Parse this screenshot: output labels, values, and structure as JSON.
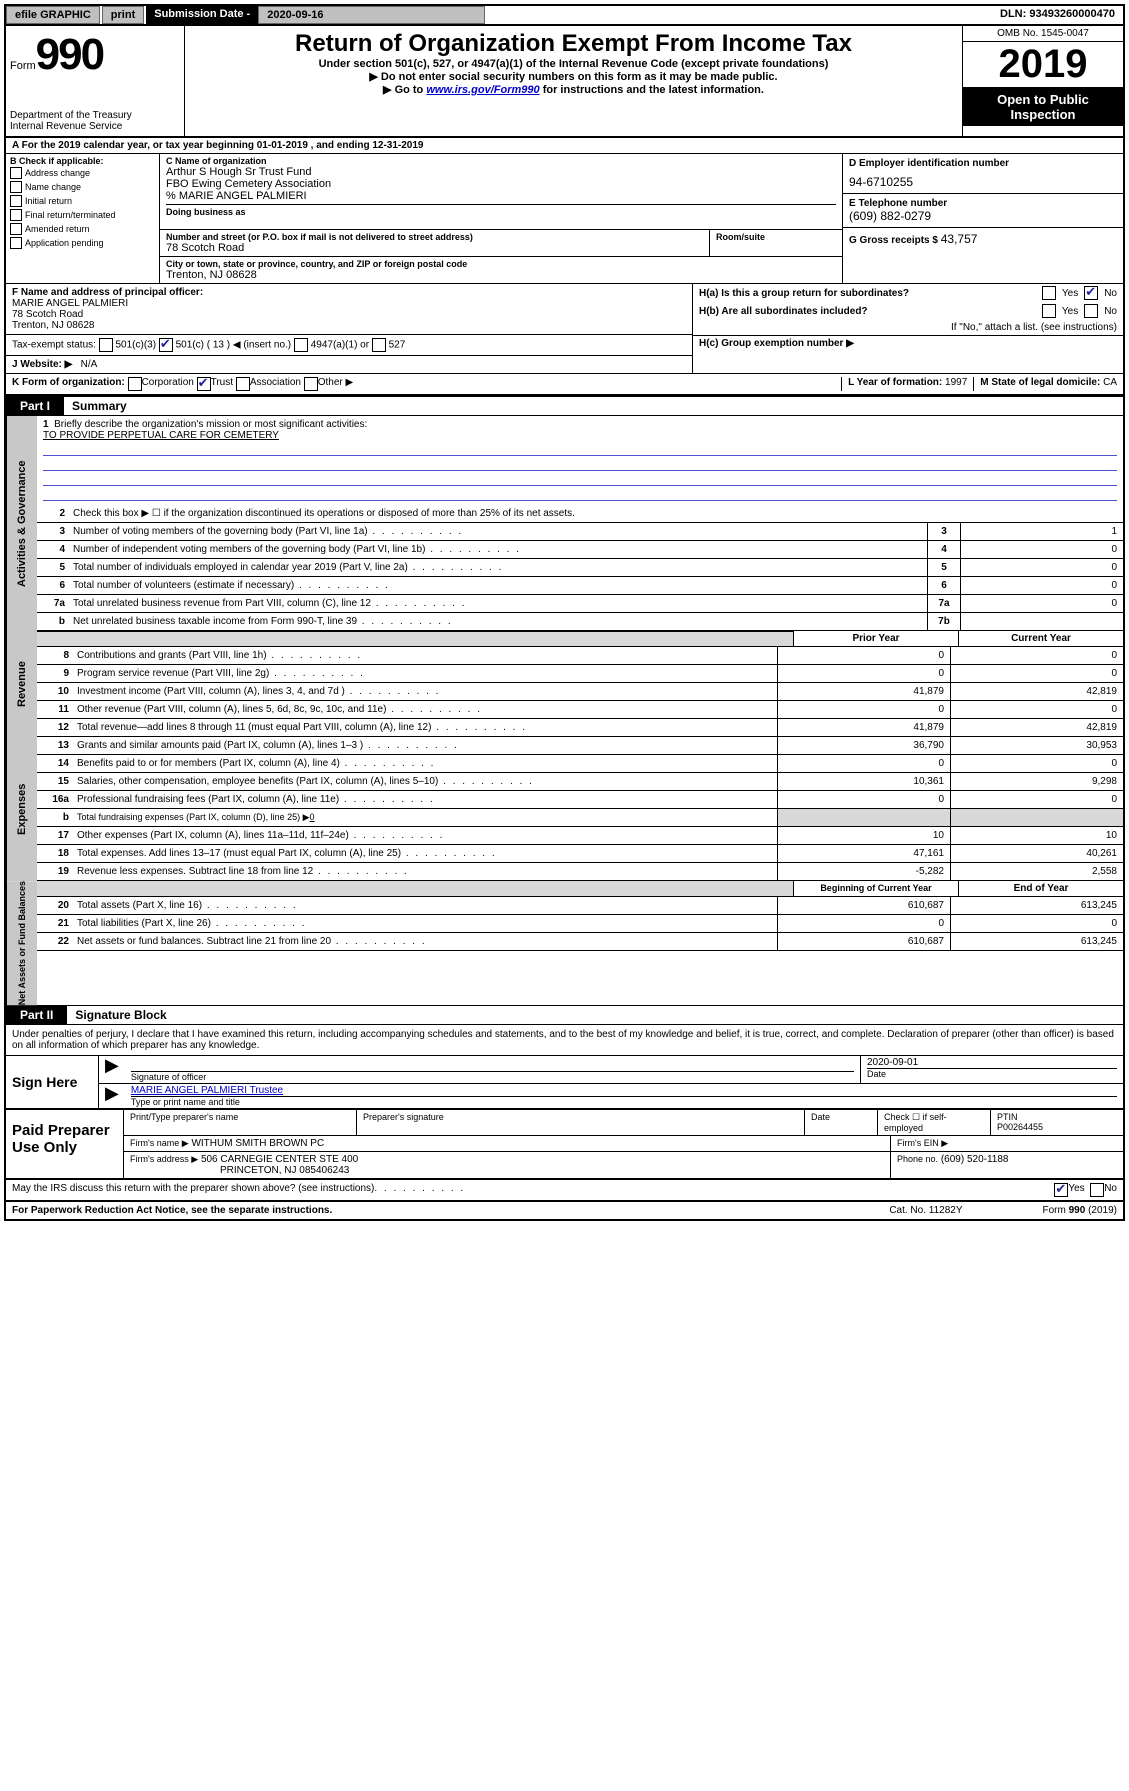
{
  "topbar": {
    "efile": "efile GRAPHIC",
    "print": "print",
    "sub_label": "Submission Date -",
    "sub_date": "2020-09-16",
    "dln": "DLN: 93493260000470"
  },
  "header": {
    "form_word": "Form",
    "form_num": "990",
    "dept1": "Department of the Treasury",
    "dept2": "Internal Revenue Service",
    "title": "Return of Organization Exempt From Income Tax",
    "sub1": "Under section 501(c), 527, or 4947(a)(1) of the Internal Revenue Code (except private foundations)",
    "sub2": "▶ Do not enter social security numbers on this form as it may be made public.",
    "sub3_pre": "▶ Go to ",
    "sub3_link": "www.irs.gov/Form990",
    "sub3_post": " for instructions and the latest information.",
    "omb": "OMB No. 1545-0047",
    "year": "2019",
    "open": "Open to Public Inspection"
  },
  "lineA": {
    "text_pre": "A For the 2019 calendar year, or tax year beginning ",
    "begin": "01-01-2019",
    "mid": " , and ending ",
    "end": "12-31-2019"
  },
  "colB": {
    "head": "B Check if applicable:",
    "opts": [
      "Address change",
      "Name change",
      "Initial return",
      "Final return/terminated",
      "Amended return",
      "Application pending"
    ]
  },
  "colC": {
    "name_label": "C Name of organization",
    "name1": "Arthur S Hough Sr Trust Fund",
    "name2": "FBO Ewing Cemetery Association",
    "name3": "% MARIE ANGEL PALMIERI",
    "dba_label": "Doing business as",
    "addr_label": "Number and street (or P.O. box if mail is not delivered to street address)",
    "addr": "78 Scotch Road",
    "room_label": "Room/suite",
    "city_label": "City or town, state or province, country, and ZIP or foreign postal code",
    "city": "Trenton, NJ  08628"
  },
  "colDE": {
    "d_label": "D Employer identification number",
    "d_val": "94-6710255",
    "e_label": "E Telephone number",
    "e_val": "(609) 882-0279",
    "g_label": "G Gross receipts $",
    "g_val": "43,757"
  },
  "rowF": {
    "label": "F Name and address of principal officer:",
    "l1": "MARIE ANGEL PALMIERI",
    "l2": "78 Scotch Road",
    "l3": "Trenton, NJ  08628"
  },
  "rowH": {
    "ha": "H(a)  Is this a group return for subordinates?",
    "hb": "H(b)  Are all subordinates included?",
    "hb_note": "If \"No,\" attach a list. (see instructions)",
    "hc": "H(c)  Group exemption number ▶",
    "yes": "Yes",
    "no": "No"
  },
  "taxStatus": {
    "label": "Tax-exempt status:",
    "a": "501(c)(3)",
    "b": "501(c) ( 13 ) ◀ (insert no.)",
    "c": "4947(a)(1) or",
    "d": "527"
  },
  "rowJ": {
    "label": "J   Website: ▶",
    "val": "N/A"
  },
  "rowK": {
    "label": "K Form of organization:",
    "opts": [
      "Corporation",
      "Trust",
      "Association",
      "Other ▶"
    ],
    "l_label": "L Year of formation:",
    "l_val": "1997",
    "m_label": "M State of legal domicile:",
    "m_val": "CA"
  },
  "partI": {
    "tab": "Part I",
    "title": "Summary"
  },
  "gov": {
    "side": "Activities & Governance",
    "q1": "Briefly describe the organization's mission or most significant activities:",
    "q1_val": "TO PROVIDE PERPETUAL CARE FOR CEMETERY",
    "q2": "Check this box ▶ ☐  if the organization discontinued its operations or disposed of more than 25% of its net assets.",
    "rows": [
      {
        "n": "3",
        "t": "Number of voting members of the governing body (Part VI, line 1a)",
        "c": "3",
        "v": "1"
      },
      {
        "n": "4",
        "t": "Number of independent voting members of the governing body (Part VI, line 1b)",
        "c": "4",
        "v": "0"
      },
      {
        "n": "5",
        "t": "Total number of individuals employed in calendar year 2019 (Part V, line 2a)",
        "c": "5",
        "v": "0"
      },
      {
        "n": "6",
        "t": "Total number of volunteers (estimate if necessary)",
        "c": "6",
        "v": "0"
      },
      {
        "n": "7a",
        "t": "Total unrelated business revenue from Part VIII, column (C), line 12",
        "c": "7a",
        "v": "0"
      },
      {
        "n": "b",
        "t": "Net unrelated business taxable income from Form 990-T, line 39",
        "c": "7b",
        "v": ""
      }
    ]
  },
  "revHead": {
    "prior": "Prior Year",
    "curr": "Current Year"
  },
  "rev": {
    "side": "Revenue",
    "rows": [
      {
        "n": "8",
        "t": "Contributions and grants (Part VIII, line 1h)",
        "p": "0",
        "c": "0"
      },
      {
        "n": "9",
        "t": "Program service revenue (Part VIII, line 2g)",
        "p": "0",
        "c": "0"
      },
      {
        "n": "10",
        "t": "Investment income (Part VIII, column (A), lines 3, 4, and 7d )",
        "p": "41,879",
        "c": "42,819"
      },
      {
        "n": "11",
        "t": "Other revenue (Part VIII, column (A), lines 5, 6d, 8c, 9c, 10c, and 11e)",
        "p": "0",
        "c": "0"
      },
      {
        "n": "12",
        "t": "Total revenue—add lines 8 through 11 (must equal Part VIII, column (A), line 12)",
        "p": "41,879",
        "c": "42,819"
      }
    ]
  },
  "exp": {
    "side": "Expenses",
    "rows": [
      {
        "n": "13",
        "t": "Grants and similar amounts paid (Part IX, column (A), lines 1–3 )",
        "p": "36,790",
        "c": "30,953"
      },
      {
        "n": "14",
        "t": "Benefits paid to or for members (Part IX, column (A), line 4)",
        "p": "0",
        "c": "0"
      },
      {
        "n": "15",
        "t": "Salaries, other compensation, employee benefits (Part IX, column (A), lines 5–10)",
        "p": "10,361",
        "c": "9,298"
      },
      {
        "n": "16a",
        "t": "Professional fundraising fees (Part IX, column (A), line 11e)",
        "p": "0",
        "c": "0"
      }
    ],
    "row_b": {
      "n": "b",
      "t": "Total fundraising expenses (Part IX, column (D), line 25) ▶",
      "v": "0"
    },
    "rows2": [
      {
        "n": "17",
        "t": "Other expenses (Part IX, column (A), lines 11a–11d, 11f–24e)",
        "p": "10",
        "c": "10"
      },
      {
        "n": "18",
        "t": "Total expenses. Add lines 13–17 (must equal Part IX, column (A), line 25)",
        "p": "47,161",
        "c": "40,261"
      },
      {
        "n": "19",
        "t": "Revenue less expenses. Subtract line 18 from line 12",
        "p": "-5,282",
        "c": "2,558"
      }
    ]
  },
  "netHead": {
    "prior": "Beginning of Current Year",
    "curr": "End of Year"
  },
  "net": {
    "side": "Net Assets or Fund Balances",
    "rows": [
      {
        "n": "20",
        "t": "Total assets (Part X, line 16)",
        "p": "610,687",
        "c": "613,245"
      },
      {
        "n": "21",
        "t": "Total liabilities (Part X, line 26)",
        "p": "0",
        "c": "0"
      },
      {
        "n": "22",
        "t": "Net assets or fund balances. Subtract line 21 from line 20",
        "p": "610,687",
        "c": "613,245"
      }
    ]
  },
  "partII": {
    "tab": "Part II",
    "title": "Signature Block"
  },
  "declare": "Under penalties of perjury, I declare that I have examined this return, including accompanying schedules and statements, and to the best of my knowledge and belief, it is true, correct, and complete. Declaration of preparer (other than officer) is based on all information of which preparer has any knowledge.",
  "sign": {
    "left": "Sign Here",
    "sig_of": "Signature of officer",
    "date_label": "Date",
    "date": "2020-09-01",
    "name": "MARIE ANGEL PALMIERI Trustee",
    "name_label": "Type or print name and title"
  },
  "paid": {
    "left": "Paid Preparer Use Only",
    "h1": "Print/Type preparer's name",
    "h2": "Preparer's signature",
    "h3": "Date",
    "h4a": "Check ☐ if self-employed",
    "h5": "PTIN",
    "ptin": "P00264455",
    "firm_name_label": "Firm's name     ▶",
    "firm_name": "WITHUM SMITH BROWN PC",
    "firm_ein_label": "Firm's EIN ▶",
    "firm_addr_label": "Firm's address ▶",
    "firm_addr1": "506 CARNEGIE CENTER STE 400",
    "firm_addr2": "PRINCETON, NJ  085406243",
    "phone_label": "Phone no.",
    "phone": "(609) 520-1188"
  },
  "discuss": {
    "q": "May the IRS discuss this return with the preparer shown above? (see instructions)",
    "yes": "Yes",
    "no": "No"
  },
  "footer": {
    "left": "For Paperwork Reduction Act Notice, see the separate instructions.",
    "mid": "Cat. No. 11282Y",
    "right": "Form 990 (2019)"
  }
}
